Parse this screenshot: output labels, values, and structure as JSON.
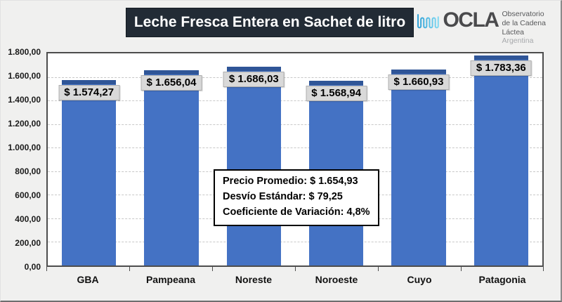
{
  "header": {
    "title": "Leche Fresca Entera en Sachet de litro",
    "title_bg": "#222B35",
    "logo": {
      "brand": "OCLA",
      "subtitle_line1": "Observatorio",
      "subtitle_line2": "de la Cadena Láctea",
      "country": "Argentina",
      "wave_color_start": "#2B9FD6",
      "wave_color_end": "#7FD8F2"
    }
  },
  "chart_data": {
    "type": "bar",
    "title": "Leche Fresca Entera en Sachet de litro",
    "categories": [
      "GBA",
      "Pampeana",
      "Noreste",
      "Noroeste",
      "Cuyo",
      "Patagonia"
    ],
    "values": [
      1574.27,
      1656.04,
      1686.03,
      1568.94,
      1660.93,
      1783.36
    ],
    "value_labels": [
      "$ 1.574,27",
      "$ 1.656,04",
      "$ 1.686,03",
      "$ 1.568,94",
      "$ 1.660,93",
      "$ 1.783,36"
    ],
    "xlabel": "",
    "ylabel": "",
    "ylim": [
      0,
      1800
    ],
    "ytick_step": 200,
    "ytick_labels_top_to_bottom": [
      "1.800,00",
      "1.600,00",
      "1.400,00",
      "1.200,00",
      "1.000,00",
      "800,00",
      "600,00",
      "400,00",
      "200,00",
      "0,00"
    ],
    "grid": "horizontal-dashed",
    "legend": "none",
    "bar_color": "#4472C4",
    "bar_cap_color": "#2F5597",
    "label_box_bg": "#D9D9D9",
    "annotation": {
      "lines": [
        "Precio Promedio: $ 1.654,93",
        "Desvío Estándar: $ 79,25",
        "Coeficiente de Variación: 4,8%"
      ]
    }
  }
}
